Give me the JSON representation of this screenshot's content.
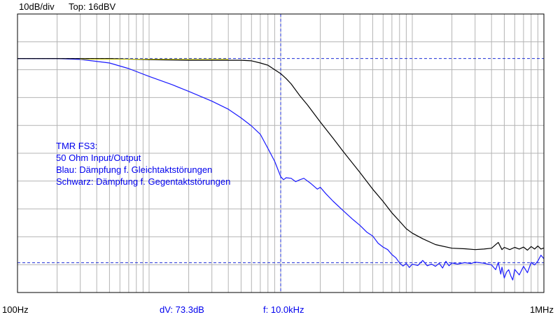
{
  "header": {
    "scale": "10dB/div",
    "top": "Top:  16dBV"
  },
  "footer": {
    "x_start": "100Hz",
    "dv": "dV: 73.3dB",
    "f": "f: 10.0kHz",
    "x_end": "1MHz"
  },
  "annotation": {
    "lines": [
      "TMR FS3:",
      "50 Ohm Input/Output",
      "Blau: Dämpfung f. Gleichtaktstörungen",
      "Schwarz: Dämpfung f. Gegentaktstörungen"
    ]
  },
  "colors": {
    "background": "#ffffff",
    "plot_bg": "#ffffff",
    "grid": "#b4b4b4",
    "frame": "#000000",
    "cursor": "#1f2fd6",
    "blue_trace": "#1a1aff",
    "black_trace": "#000000",
    "overlap": "#c8c800",
    "text_blue": "#0000ee"
  },
  "chart_data": {
    "type": "line",
    "x_scale": "log",
    "xlim": [
      100,
      1000000
    ],
    "ylim": [
      -84,
      16
    ],
    "y_unit": "dBV",
    "y_div": 10,
    "grid": true,
    "cursors": {
      "x": 10000,
      "y_top": 0,
      "y_bottom": -73.3
    },
    "series": [
      {
        "color": "blue",
        "points": [
          [
            100,
            0
          ],
          [
            200,
            0
          ],
          [
            300,
            -0.3
          ],
          [
            500,
            -1.6
          ],
          [
            700,
            -3.6
          ],
          [
            1000,
            -6.4
          ],
          [
            1500,
            -9.4
          ],
          [
            2000,
            -11.8
          ],
          [
            3000,
            -15.3
          ],
          [
            4000,
            -18.2
          ],
          [
            5000,
            -21.3
          ],
          [
            6000,
            -24.2
          ],
          [
            7000,
            -27.2
          ],
          [
            8000,
            -32.3
          ],
          [
            9000,
            -36.9
          ],
          [
            10000,
            -42.4
          ],
          [
            10500,
            -43.5
          ],
          [
            11000,
            -42.8
          ],
          [
            12000,
            -43
          ],
          [
            13000,
            -44.2
          ],
          [
            14000,
            -43.5
          ],
          [
            15000,
            -43
          ],
          [
            17000,
            -44.9
          ],
          [
            19000,
            -46.9
          ],
          [
            20000,
            -46.2
          ],
          [
            22000,
            -48.5
          ],
          [
            25000,
            -51.2
          ],
          [
            30000,
            -54.7
          ],
          [
            35000,
            -57.6
          ],
          [
            40000,
            -59.9
          ],
          [
            45000,
            -62.3
          ],
          [
            50000,
            -63.7
          ],
          [
            55000,
            -66.3
          ],
          [
            60000,
            -67.7
          ],
          [
            65000,
            -68.6
          ],
          [
            70000,
            -70.4
          ],
          [
            75000,
            -71.5
          ],
          [
            80000,
            -73.4
          ],
          [
            85000,
            -74.5
          ],
          [
            90000,
            -73.6
          ],
          [
            95000,
            -75
          ],
          [
            100000,
            -73.8
          ],
          [
            110000,
            -74.3
          ],
          [
            120000,
            -72.5
          ],
          [
            130000,
            -74.4
          ],
          [
            140000,
            -73.8
          ],
          [
            150000,
            -74.6
          ],
          [
            160000,
            -73.5
          ],
          [
            170000,
            -75.2
          ],
          [
            180000,
            -72.8
          ],
          [
            190000,
            -74.4
          ],
          [
            200000,
            -73.4
          ],
          [
            220000,
            -73.8
          ],
          [
            250000,
            -73.3
          ],
          [
            280000,
            -73.6
          ],
          [
            300000,
            -73.1
          ],
          [
            350000,
            -73.5
          ],
          [
            400000,
            -74.1
          ],
          [
            430000,
            -75.8
          ],
          [
            450000,
            -73.2
          ],
          [
            470000,
            -77.4
          ],
          [
            480000,
            -74.9
          ],
          [
            500000,
            -78.8
          ],
          [
            520000,
            -76.7
          ],
          [
            540000,
            -75.8
          ],
          [
            560000,
            -78
          ],
          [
            580000,
            -79.5
          ],
          [
            600000,
            -75.7
          ],
          [
            650000,
            -77.7
          ],
          [
            700000,
            -74.6
          ],
          [
            750000,
            -76.9
          ],
          [
            800000,
            -73.2
          ],
          [
            850000,
            -74.1
          ],
          [
            900000,
            -72.7
          ],
          [
            950000,
            -70.6
          ],
          [
            1000000,
            -71.9
          ]
        ]
      },
      {
        "color": "black",
        "points": [
          [
            100,
            0
          ],
          [
            500,
            0
          ],
          [
            1000,
            -0.4
          ],
          [
            2000,
            -0.6
          ],
          [
            3000,
            -0.6
          ],
          [
            4000,
            -0.6
          ],
          [
            5000,
            -0.6
          ],
          [
            6000,
            -0.8
          ],
          [
            7000,
            -1.6
          ],
          [
            8000,
            -2.4
          ],
          [
            9000,
            -4
          ],
          [
            10000,
            -5.4
          ],
          [
            11000,
            -7.2
          ],
          [
            12000,
            -9.1
          ],
          [
            14000,
            -13.4
          ],
          [
            16000,
            -16.7
          ],
          [
            20000,
            -22.8
          ],
          [
            25000,
            -28.6
          ],
          [
            30000,
            -33.5
          ],
          [
            40000,
            -40.9
          ],
          [
            50000,
            -46.9
          ],
          [
            60000,
            -51.3
          ],
          [
            70000,
            -55.4
          ],
          [
            80000,
            -58.4
          ],
          [
            90000,
            -61.1
          ],
          [
            100000,
            -62.7
          ],
          [
            120000,
            -64.7
          ],
          [
            150000,
            -66.8
          ],
          [
            200000,
            -68.1
          ],
          [
            250000,
            -68.3
          ],
          [
            300000,
            -68.6
          ],
          [
            350000,
            -68.4
          ],
          [
            400000,
            -68.1
          ],
          [
            450000,
            -66
          ],
          [
            480000,
            -68.6
          ],
          [
            500000,
            -67.8
          ],
          [
            550000,
            -68.6
          ],
          [
            600000,
            -67.8
          ],
          [
            650000,
            -68.4
          ],
          [
            700000,
            -67.7
          ],
          [
            750000,
            -68.8
          ],
          [
            800000,
            -67.5
          ],
          [
            850000,
            -68.4
          ],
          [
            900000,
            -67.3
          ],
          [
            950000,
            -68.4
          ],
          [
            1000000,
            -68
          ]
        ]
      }
    ]
  }
}
